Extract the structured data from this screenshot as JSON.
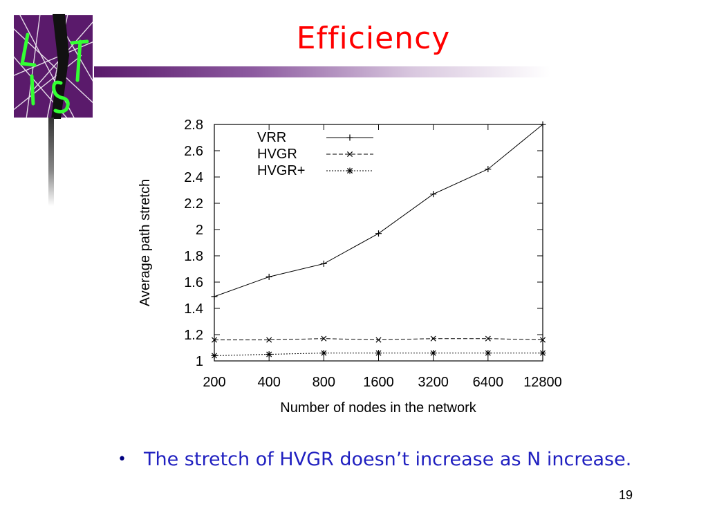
{
  "slide": {
    "title": "Efficiency",
    "bullet": "The stretch of HVGR doesn’t increase as N increase.",
    "page_number": "19",
    "logo_text": "LIST",
    "colors": {
      "title": "#ff0000",
      "bullet": "#2020c0",
      "logo_bg": "#5a1a6b",
      "logo_text": "#33ff33"
    }
  },
  "chart_data": {
    "type": "line",
    "xlabel": "Number of nodes in the network",
    "ylabel": "Average path stretch",
    "categories": [
      "200",
      "400",
      "800",
      "1600",
      "3200",
      "6400",
      "12800"
    ],
    "y_ticks": [
      "1",
      "1.2",
      "1.4",
      "1.6",
      "1.8",
      "2",
      "2.2",
      "2.4",
      "2.6",
      "2.8"
    ],
    "ylim": [
      1,
      2.8
    ],
    "x_scale": "log2 (categorical, evenly spaced)",
    "grid": false,
    "legend_position": "top-left",
    "series": [
      {
        "name": "VRR",
        "marker": "plus",
        "dash": "solid",
        "values": [
          1.49,
          1.64,
          1.74,
          1.97,
          2.27,
          2.46,
          2.8
        ]
      },
      {
        "name": "HVGR",
        "marker": "cross",
        "dash": "dashed",
        "values": [
          1.16,
          1.16,
          1.17,
          1.16,
          1.17,
          1.17,
          1.16
        ]
      },
      {
        "name": "HVGR+",
        "marker": "asterisk",
        "dash": "dotted",
        "values": [
          1.04,
          1.05,
          1.06,
          1.06,
          1.06,
          1.06,
          1.06
        ]
      }
    ]
  }
}
